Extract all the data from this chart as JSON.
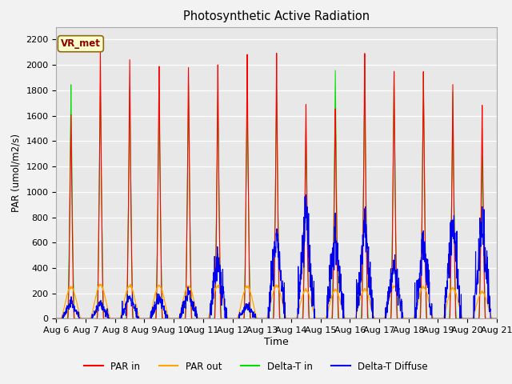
{
  "title": "Photosynthetic Active Radiation",
  "ylabel": "PAR (umol/m2/s)",
  "xlabel": "Time",
  "annotation": "VR_met",
  "ylim": [
    0,
    2300
  ],
  "plot_bg_color": "#e8e8e8",
  "fig_bg_color": "#f2f2f2",
  "colors": {
    "PAR_in": "#ff0000",
    "PAR_out": "#ffa500",
    "Delta_T_in": "#00dd00",
    "Delta_T_Diffuse": "#0000ee"
  },
  "legend": [
    "PAR in",
    "PAR out",
    "Delta-T in",
    "Delta-T Diffuse"
  ],
  "x_tick_labels": [
    "Aug 6",
    "Aug 7",
    "Aug 8",
    "Aug 9",
    "Aug 10",
    "Aug 11",
    "Aug 12",
    "Aug 13",
    "Aug 14",
    "Aug 15",
    "Aug 16",
    "Aug 17",
    "Aug 18",
    "Aug 19",
    "Aug 20",
    "Aug 21"
  ],
  "days": 15,
  "points_per_day": 144,
  "par_in_peaks": [
    1650,
    2070,
    2020,
    2020,
    2010,
    2000,
    2050,
    2060,
    1700,
    1710,
    2100,
    1960,
    1970,
    1820,
    1700
  ],
  "par_out_peaks": [
    250,
    265,
    260,
    260,
    258,
    255,
    255,
    260,
    225,
    225,
    230,
    255,
    250,
    240,
    210
  ],
  "delta_t_in_peaks": [
    1840,
    1840,
    1820,
    1820,
    1810,
    1800,
    1810,
    1820,
    1450,
    1970,
    1970,
    1930,
    1940,
    1780,
    1310
  ],
  "delta_t_diffuse_peaks": [
    130,
    120,
    175,
    165,
    200,
    460,
    110,
    640,
    820,
    620,
    745,
    430,
    615,
    750,
    740
  ]
}
